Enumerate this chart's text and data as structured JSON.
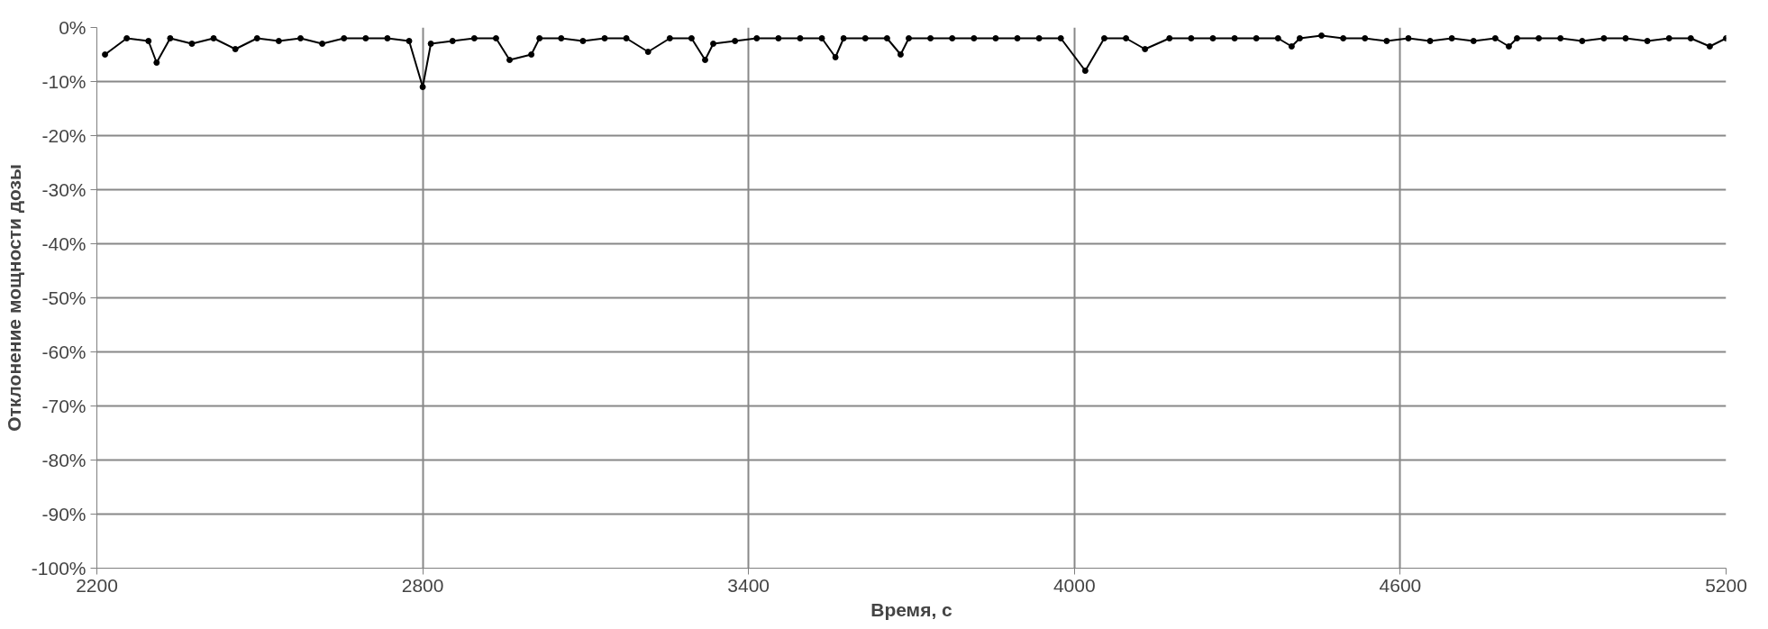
{
  "chart_data": {
    "type": "line",
    "xlabel": "Время, с",
    "ylabel": "Отклонение мощности дозы",
    "x": [
      2215,
      2255,
      2295,
      2310,
      2335,
      2375,
      2415,
      2455,
      2495,
      2535,
      2575,
      2615,
      2655,
      2695,
      2735,
      2775,
      2800,
      2815,
      2855,
      2895,
      2935,
      2960,
      3000,
      3015,
      3055,
      3095,
      3135,
      3175,
      3215,
      3255,
      3295,
      3320,
      3335,
      3375,
      3415,
      3455,
      3495,
      3535,
      3560,
      3575,
      3615,
      3655,
      3680,
      3695,
      3735,
      3775,
      3815,
      3855,
      3895,
      3935,
      3975,
      4020,
      4055,
      4095,
      4130,
      4175,
      4215,
      4255,
      4295,
      4335,
      4375,
      4400,
      4415,
      4455,
      4495,
      4535,
      4575,
      4615,
      4655,
      4695,
      4735,
      4775,
      4800,
      4815,
      4855,
      4895,
      4935,
      4975,
      5015,
      5055,
      5095,
      5135,
      5170,
      5200
    ],
    "series": [
      {
        "color": "#000000",
        "values": [
          -5,
          -2,
          -2.5,
          -6.5,
          -2,
          -3,
          -2,
          -4,
          -2,
          -2.5,
          -2,
          -3,
          -2,
          -2,
          -2,
          -2.5,
          -11,
          -3,
          -2.5,
          -2,
          -2,
          -6,
          -5,
          -2,
          -2,
          -2.5,
          -2,
          -2,
          -4.5,
          -2,
          -2,
          -6,
          -3,
          -2.5,
          -2,
          -2,
          -2,
          -2,
          -5.5,
          -2,
          -2,
          -2,
          -5,
          -2,
          -2,
          -2,
          -2,
          -2,
          -2,
          -2,
          -2,
          -8,
          -2,
          -2,
          -4,
          -2,
          -2,
          -2,
          -2,
          -2,
          -2,
          -3.5,
          -2,
          -1.5,
          -2,
          -2,
          -2.5,
          -2,
          -2.5,
          -2,
          -2.5,
          -2,
          -3.5,
          -2,
          -2,
          -2,
          -2.5,
          -2,
          -2,
          -2.5,
          -2,
          -2,
          -3.5,
          -2
        ]
      }
    ],
    "xlim": [
      2200,
      5200
    ],
    "xticks": [
      2200,
      2800,
      3400,
      4000,
      4600,
      5200
    ],
    "ylim": [
      -100,
      0
    ],
    "yticks": [
      {
        "value": 0,
        "label": "0%"
      },
      {
        "value": -10,
        "label": "-10%"
      },
      {
        "value": -20,
        "label": "-20%"
      },
      {
        "value": -30,
        "label": "-30%"
      },
      {
        "value": -40,
        "label": "-40%"
      },
      {
        "value": -50,
        "label": "-50%"
      },
      {
        "value": -60,
        "label": "-60%"
      },
      {
        "value": -70,
        "label": "-70%"
      },
      {
        "value": -80,
        "label": "-80%"
      },
      {
        "value": -90,
        "label": "-90%"
      },
      {
        "value": -100,
        "label": "-100%"
      }
    ],
    "grid": true,
    "marker": "circle",
    "line_style": "solid"
  }
}
